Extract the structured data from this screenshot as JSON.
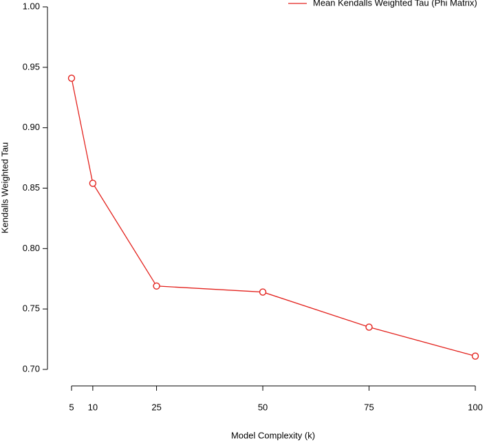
{
  "chart_data": {
    "type": "line",
    "x_label": "Model Complexity (k)",
    "y_label": "Kendalls Weighted Tau",
    "x": [
      5,
      10,
      25,
      50,
      75,
      100
    ],
    "series": [
      {
        "name": "Mean Kendalls Weighted Tau (Phi Matrix)",
        "color": "#e3211c",
        "values": [
          0.941,
          0.854,
          0.769,
          0.764,
          0.735,
          0.711
        ]
      }
    ],
    "xlim": [
      5,
      100
    ],
    "xticks": [
      5,
      10,
      25,
      50,
      75,
      100
    ],
    "ylim": [
      0.7,
      1.0
    ],
    "yticks": [
      {
        "value": 0.7,
        "label": "0.70"
      },
      0.75,
      {
        "value": 0.8,
        "label": "0.80"
      },
      0.85,
      {
        "value": 0.9,
        "label": "0.90"
      },
      0.95,
      {
        "value": 1.0,
        "label": "1.00"
      }
    ],
    "legend": "top-right",
    "markers": true
  }
}
